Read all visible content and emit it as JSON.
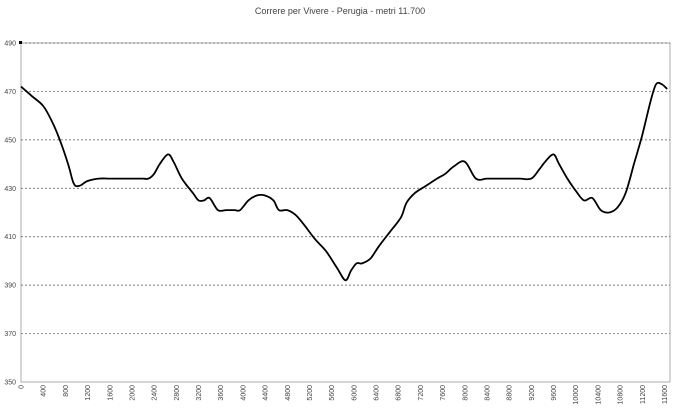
{
  "chart_data": {
    "type": "line",
    "title": "Correre per Vivere - Perugia - metri 11.700",
    "xlabel": "",
    "ylabel": "",
    "xlim": [
      0,
      11700
    ],
    "ylim": [
      350,
      490
    ],
    "grid": true,
    "y_ticks": [
      350,
      370,
      390,
      410,
      430,
      450,
      470,
      490
    ],
    "x_ticks": [
      0,
      400,
      800,
      1200,
      1600,
      2000,
      2400,
      2800,
      3200,
      3600,
      4000,
      4400,
      4800,
      5200,
      5600,
      6000,
      6400,
      6800,
      7200,
      7600,
      8000,
      8400,
      8800,
      9200,
      9600,
      10000,
      10400,
      10800,
      11200,
      11600
    ],
    "series": [
      {
        "color": "#000000",
        "x": [
          0,
          200,
          400,
          550,
          700,
          850,
          950,
          1050,
          1200,
          1400,
          1600,
          1800,
          2000,
          2200,
          2300,
          2400,
          2500,
          2650,
          2750,
          2900,
          3100,
          3200,
          3300,
          3400,
          3550,
          3700,
          3850,
          3950,
          4100,
          4250,
          4400,
          4550,
          4650,
          4800,
          4950,
          5100,
          5300,
          5500,
          5700,
          5850,
          5950,
          6050,
          6150,
          6300,
          6450,
          6650,
          6850,
          6950,
          7100,
          7300,
          7500,
          7650,
          7800,
          8000,
          8200,
          8400,
          8600,
          8800,
          9000,
          9200,
          9350,
          9450,
          9600,
          9700,
          9850,
          10000,
          10150,
          10300,
          10450,
          10600,
          10750,
          10900,
          11050,
          11200,
          11350,
          11450,
          11550,
          11650
        ],
        "y": [
          472,
          468,
          464,
          458,
          450,
          440,
          432,
          431,
          433,
          434,
          434,
          434,
          434,
          434,
          434,
          436,
          440,
          444,
          441,
          434,
          428,
          425,
          425,
          426,
          421,
          421,
          421,
          421,
          425,
          427,
          427,
          425,
          421,
          421,
          419,
          415,
          409,
          404,
          397,
          392,
          396,
          399,
          399,
          401,
          406,
          412,
          418,
          424,
          428,
          431,
          434,
          436,
          439,
          441,
          434,
          434,
          434,
          434,
          434,
          434,
          438,
          441,
          444,
          440,
          434,
          429,
          425,
          426,
          421,
          420,
          422,
          428,
          440,
          452,
          466,
          473,
          473,
          471
        ]
      }
    ]
  }
}
